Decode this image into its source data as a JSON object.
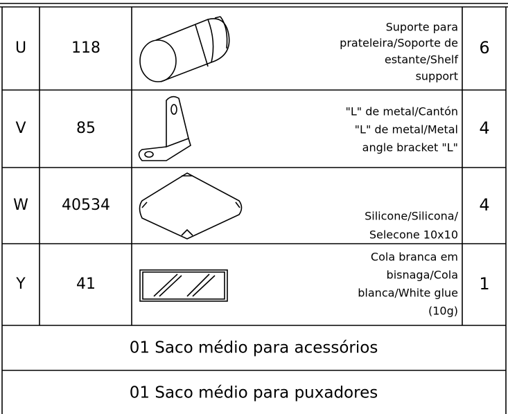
{
  "table": {
    "rows": [
      {
        "letter": "U",
        "code": "118",
        "description": [
          "Suporte para",
          "prateleira/Soporte de",
          "estante/Shelf",
          "support"
        ],
        "quantity": "6"
      },
      {
        "letter": "V",
        "code": "85",
        "description": [
          "\"L\" de metal/Cantón",
          "\"L\" de metal/Metal",
          "angle bracket \"L\""
        ],
        "quantity": "4"
      },
      {
        "letter": "W",
        "code": "40534",
        "description": [
          "Silicone/Silicona/",
          "Selecone 10x10"
        ],
        "quantity": "4"
      },
      {
        "letter": "Y",
        "code": "41",
        "description": [
          "Cola branca em",
          "bisnaga/Cola",
          "blanca/White glue",
          "(10g)"
        ],
        "quantity": "1"
      }
    ],
    "footer": [
      "01 Saco médio para acessórios",
      "01 Saco médio para puxadores"
    ]
  }
}
